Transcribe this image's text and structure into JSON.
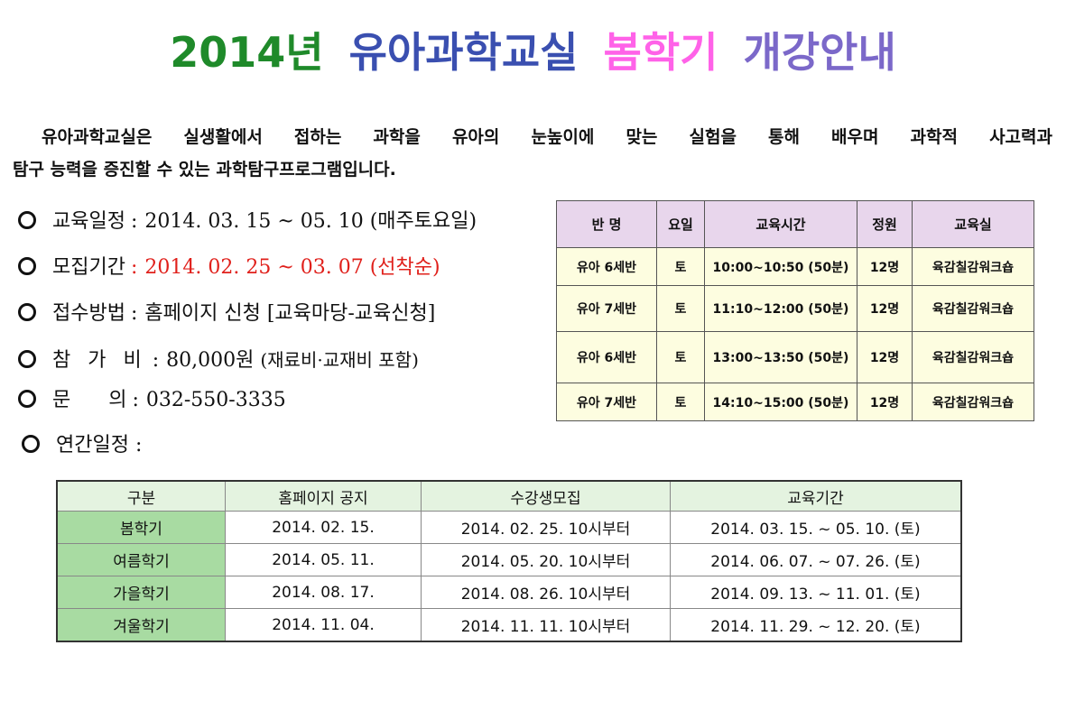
{
  "title": {
    "year": "2014년",
    "classroom": "유아과학교실",
    "season": "봄학기",
    "guide": "개강안내"
  },
  "intro": {
    "line1": "유아과학교실은 실생활에서 접하는 과학을 유아의 눈높이에 맞는 실험을 통해 배우며 과학적 사고력과",
    "line2": "탐구 능력을 증진할 수 있는 과학탐구프로그램입니다."
  },
  "info": {
    "schedule": {
      "label": "교육일정",
      "value": "2014. 03. 15 ~ 05. 10 (매주토요일)"
    },
    "recruit": {
      "label": "모집기간",
      "value": "2014. 02. 25 ~ 03. 07 (선착순)"
    },
    "apply": {
      "label": "접수방법",
      "value": "홈페이지 신청 [교육마당-교육신청]"
    },
    "fee": {
      "label": "참 가 비",
      "value": "80,000원",
      "note": "(재료비·교재비 포함)"
    },
    "contact": {
      "label": "문      의",
      "value": "032-550-3335"
    },
    "yearly": {
      "label": "연간일정 :"
    }
  },
  "class_table": {
    "headers": [
      "반  명",
      "요일",
      "교육시간",
      "정원",
      "교육실"
    ],
    "rows": [
      [
        "유아  6세반",
        "토",
        "10:00~10:50 (50분)",
        "12명",
        "육감칠감워크숍"
      ],
      [
        "유아  7세반",
        "토",
        "11:10~12:00 (50분)",
        "12명",
        "육감칠감워크숍"
      ],
      [
        "유아  6세반",
        "토",
        "13:00~13:50 (50분)",
        "12명",
        "육감칠감워크숍"
      ],
      [
        "유아  7세반",
        "토",
        "14:10~15:00 (50분)",
        "12명",
        "육감칠감워크숍"
      ]
    ]
  },
  "yearly_table": {
    "headers": [
      "구분",
      "홈페이지 공지",
      "수강생모집",
      "교육기간"
    ],
    "rows": [
      [
        "봄학기",
        "2014. 02. 15.",
        "2014. 02. 25. 10시부터",
        "2014. 03. 15. ~ 05. 10. (토)"
      ],
      [
        "여름학기",
        "2014. 05. 11.",
        "2014. 05. 20. 10시부터",
        "2014. 06. 07. ~ 07. 26. (토)"
      ],
      [
        "가을학기",
        "2014. 08. 17.",
        "2014. 08. 26. 10시부터",
        "2014. 09. 13. ~ 11. 01. (토)"
      ],
      [
        "겨울학기",
        "2014. 11. 04.",
        "2014. 11. 11. 10시부터",
        "2014. 11. 29. ~ 12. 20. (토)"
      ]
    ]
  }
}
